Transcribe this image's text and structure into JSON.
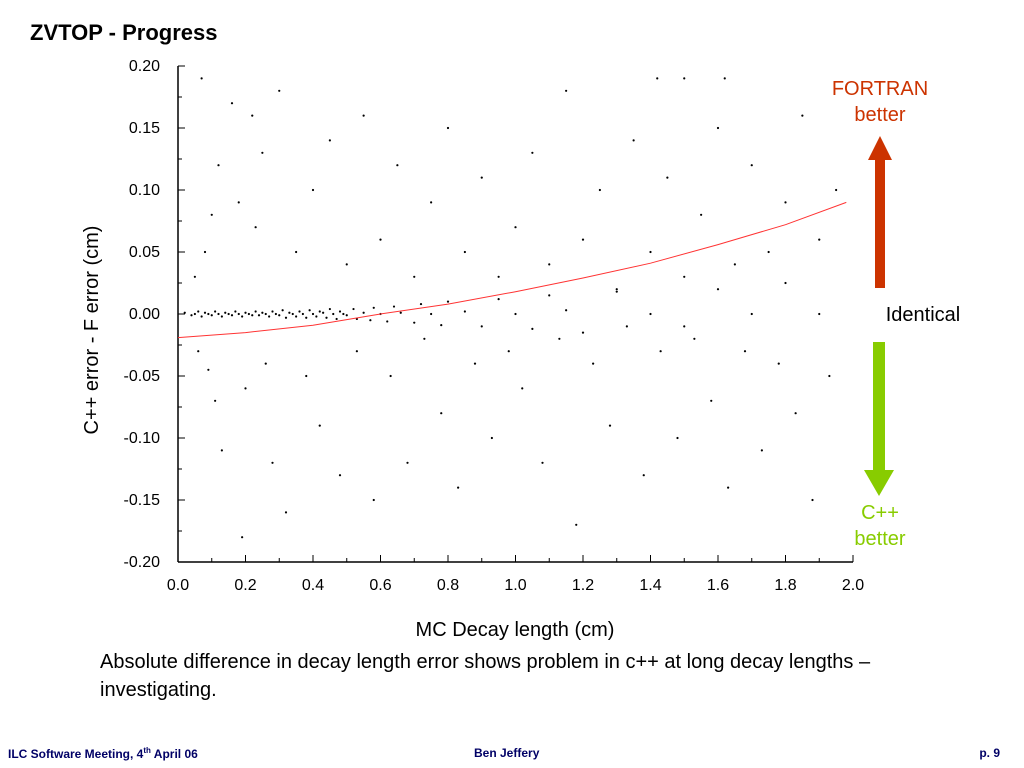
{
  "slide": {
    "title": "ZVTOP - Progress",
    "caption": "Absolute difference in decay length error shows problem in c++ at long decay lengths – investigating.",
    "labels": {
      "fortran_line1": "FORTRAN",
      "fortran_line2": "better",
      "identical": "Identical",
      "cpp_line1": "C++",
      "cpp_line2": "better"
    },
    "footer": {
      "left_prefix": "ILC Software Meeting, 4",
      "left_sup": "th",
      "left_suffix": " April 06",
      "center": "Ben Jeffery",
      "right": "p. 9"
    },
    "colors": {
      "fortran": "#cc3300",
      "cpp": "#88cc00",
      "fit_line": "#ff3333",
      "points": "#000000",
      "footer": "#000066"
    }
  },
  "chart_data": {
    "type": "scatter",
    "title": "",
    "xlabel": "MC Decay length (cm)",
    "ylabel": "C++ error - F error (cm)",
    "xlim": [
      0.0,
      2.0
    ],
    "ylim": [
      -0.2,
      0.2
    ],
    "x_ticks": [
      "0.0",
      "0.2",
      "0.4",
      "0.6",
      "0.8",
      "1.0",
      "1.2",
      "1.4",
      "1.6",
      "1.8",
      "2.0"
    ],
    "y_ticks": [
      "0.20",
      "0.15",
      "0.10",
      "0.05",
      "0.00",
      "-0.05",
      "-0.10",
      "-0.15",
      "-0.20"
    ],
    "grid": false,
    "fit_curve": {
      "x": [
        0.0,
        0.2,
        0.4,
        0.6,
        0.8,
        1.0,
        1.2,
        1.4,
        1.6,
        1.8,
        1.98
      ],
      "y": [
        -0.019,
        -0.015,
        -0.009,
        0.0,
        0.008,
        0.018,
        0.029,
        0.041,
        0.056,
        0.072,
        0.09
      ]
    },
    "points": [
      [
        0.02,
        0.001
      ],
      [
        0.04,
        -0.001
      ],
      [
        0.05,
        0.0
      ],
      [
        0.06,
        0.002
      ],
      [
        0.07,
        -0.002
      ],
      [
        0.08,
        0.001
      ],
      [
        0.09,
        0.0
      ],
      [
        0.1,
        -0.001
      ],
      [
        0.11,
        0.002
      ],
      [
        0.12,
        0.0
      ],
      [
        0.13,
        -0.002
      ],
      [
        0.14,
        0.001
      ],
      [
        0.15,
        0.0
      ],
      [
        0.16,
        -0.001
      ],
      [
        0.17,
        0.002
      ],
      [
        0.18,
        0.0
      ],
      [
        0.19,
        -0.002
      ],
      [
        0.2,
        0.001
      ],
      [
        0.21,
        0.0
      ],
      [
        0.22,
        -0.001
      ],
      [
        0.23,
        0.002
      ],
      [
        0.24,
        -0.001
      ],
      [
        0.25,
        0.001
      ],
      [
        0.26,
        0.0
      ],
      [
        0.27,
        -0.002
      ],
      [
        0.28,
        0.002
      ],
      [
        0.29,
        0.0
      ],
      [
        0.3,
        -0.001
      ],
      [
        0.31,
        0.003
      ],
      [
        0.32,
        -0.003
      ],
      [
        0.33,
        0.001
      ],
      [
        0.34,
        0.0
      ],
      [
        0.35,
        -0.002
      ],
      [
        0.36,
        0.002
      ],
      [
        0.37,
        0.0
      ],
      [
        0.38,
        -0.003
      ],
      [
        0.39,
        0.003
      ],
      [
        0.4,
        0.0
      ],
      [
        0.41,
        -0.002
      ],
      [
        0.42,
        0.002
      ],
      [
        0.43,
        0.001
      ],
      [
        0.44,
        -0.003
      ],
      [
        0.45,
        0.004
      ],
      [
        0.46,
        0.0
      ],
      [
        0.47,
        -0.004
      ],
      [
        0.48,
        0.002
      ],
      [
        0.49,
        0.0
      ],
      [
        0.5,
        -0.001
      ],
      [
        0.52,
        0.004
      ],
      [
        0.53,
        -0.004
      ],
      [
        0.55,
        0.001
      ],
      [
        0.57,
        -0.005
      ],
      [
        0.58,
        0.005
      ],
      [
        0.6,
        0.0
      ],
      [
        0.62,
        -0.006
      ],
      [
        0.64,
        0.006
      ],
      [
        0.66,
        0.001
      ],
      [
        0.7,
        -0.007
      ],
      [
        0.72,
        0.008
      ],
      [
        0.75,
        0.0
      ],
      [
        0.78,
        -0.009
      ],
      [
        0.8,
        0.01
      ],
      [
        0.85,
        0.002
      ],
      [
        0.9,
        -0.01
      ],
      [
        0.95,
        0.012
      ],
      [
        1.0,
        0.0
      ],
      [
        1.05,
        -0.012
      ],
      [
        1.1,
        0.015
      ],
      [
        1.15,
        0.003
      ],
      [
        1.2,
        -0.015
      ],
      [
        1.3,
        0.018
      ],
      [
        1.4,
        0.0
      ],
      [
        1.5,
        -0.01
      ],
      [
        1.6,
        0.02
      ],
      [
        1.7,
        0.0
      ],
      [
        1.8,
        0.025
      ],
      [
        1.9,
        0.0
      ],
      [
        0.05,
        0.03
      ],
      [
        0.06,
        -0.03
      ],
      [
        0.08,
        0.05
      ],
      [
        0.09,
        -0.045
      ],
      [
        0.1,
        0.08
      ],
      [
        0.11,
        -0.07
      ],
      [
        0.12,
        0.12
      ],
      [
        0.13,
        -0.11
      ],
      [
        0.07,
        0.19
      ],
      [
        0.16,
        0.17
      ],
      [
        0.19,
        -0.18
      ],
      [
        0.22,
        0.16
      ],
      [
        0.25,
        0.13
      ],
      [
        0.28,
        -0.12
      ],
      [
        0.3,
        0.18
      ],
      [
        0.32,
        -0.16
      ],
      [
        0.18,
        0.09
      ],
      [
        0.2,
        -0.06
      ],
      [
        0.23,
        0.07
      ],
      [
        0.26,
        -0.04
      ],
      [
        0.35,
        0.05
      ],
      [
        0.38,
        -0.05
      ],
      [
        0.4,
        0.1
      ],
      [
        0.42,
        -0.09
      ],
      [
        0.45,
        0.14
      ],
      [
        0.48,
        -0.13
      ],
      [
        0.5,
        0.04
      ],
      [
        0.53,
        -0.03
      ],
      [
        0.55,
        0.16
      ],
      [
        0.58,
        -0.15
      ],
      [
        0.6,
        0.06
      ],
      [
        0.63,
        -0.05
      ],
      [
        0.65,
        0.12
      ],
      [
        0.68,
        -0.12
      ],
      [
        0.7,
        0.03
      ],
      [
        0.73,
        -0.02
      ],
      [
        0.75,
        0.09
      ],
      [
        0.78,
        -0.08
      ],
      [
        0.8,
        0.15
      ],
      [
        0.83,
        -0.14
      ],
      [
        0.85,
        0.05
      ],
      [
        0.88,
        -0.04
      ],
      [
        0.9,
        0.11
      ],
      [
        0.93,
        -0.1
      ],
      [
        0.95,
        0.03
      ],
      [
        0.98,
        -0.03
      ],
      [
        1.0,
        0.07
      ],
      [
        1.02,
        -0.06
      ],
      [
        1.05,
        0.13
      ],
      [
        1.08,
        -0.12
      ],
      [
        1.1,
        0.04
      ],
      [
        1.13,
        -0.02
      ],
      [
        1.15,
        0.18
      ],
      [
        1.18,
        -0.17
      ],
      [
        1.2,
        0.06
      ],
      [
        1.23,
        -0.04
      ],
      [
        1.25,
        0.1
      ],
      [
        1.28,
        -0.09
      ],
      [
        1.3,
        0.02
      ],
      [
        1.33,
        -0.01
      ],
      [
        1.35,
        0.14
      ],
      [
        1.38,
        -0.13
      ],
      [
        1.4,
        0.05
      ],
      [
        1.43,
        -0.03
      ],
      [
        1.45,
        0.11
      ],
      [
        1.48,
        -0.1
      ],
      [
        1.5,
        0.03
      ],
      [
        1.53,
        -0.02
      ],
      [
        1.55,
        0.08
      ],
      [
        1.58,
        -0.07
      ],
      [
        1.6,
        0.15
      ],
      [
        1.63,
        -0.14
      ],
      [
        1.65,
        0.04
      ],
      [
        1.68,
        -0.03
      ],
      [
        1.7,
        0.12
      ],
      [
        1.73,
        -0.11
      ],
      [
        1.75,
        0.05
      ],
      [
        1.78,
        -0.04
      ],
      [
        1.8,
        0.09
      ],
      [
        1.83,
        -0.08
      ],
      [
        1.85,
        0.16
      ],
      [
        1.88,
        -0.15
      ],
      [
        1.9,
        0.06
      ],
      [
        1.93,
        -0.05
      ],
      [
        1.95,
        0.1
      ],
      [
        1.5,
        0.19
      ],
      [
        1.42,
        0.19
      ],
      [
        1.62,
        0.19
      ]
    ]
  }
}
